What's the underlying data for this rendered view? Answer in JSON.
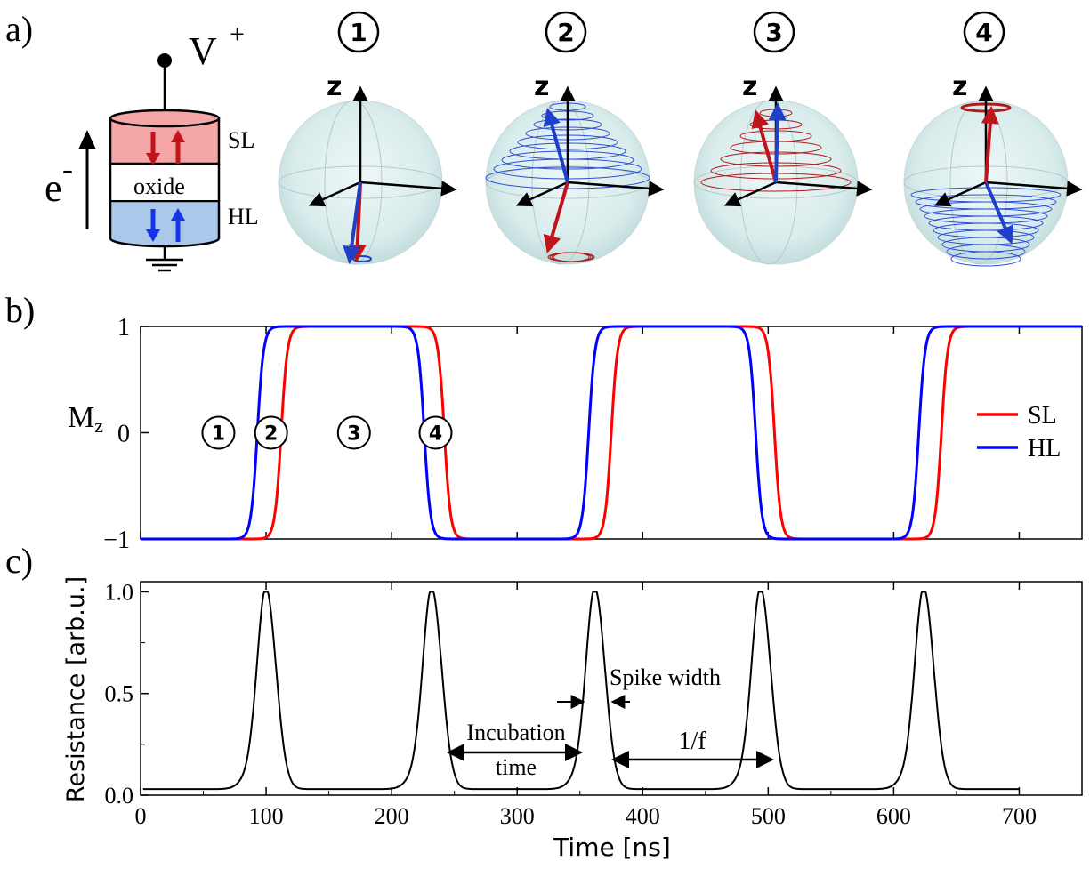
{
  "panel_labels": {
    "a": "a)",
    "b": "b)",
    "c": "c)"
  },
  "device": {
    "voltage_label": "V",
    "voltage_sup": "+",
    "electron_label": "e",
    "electron_sup": "-",
    "layer_top": "SL",
    "layer_mid": "oxide",
    "layer_bottom": "HL",
    "colors": {
      "sl_fill": "#f4a6a6",
      "hl_fill": "#a9c8ea",
      "sl_arrow": "#e8141b",
      "hl_arrow": "#1533e8"
    }
  },
  "spheres": [
    {
      "number": "1",
      "axis_label": "z"
    },
    {
      "number": "2",
      "axis_label": "z"
    },
    {
      "number": "3",
      "axis_label": "z"
    },
    {
      "number": "4",
      "axis_label": "z"
    }
  ],
  "chart_data": [
    {
      "type": "line",
      "ylabel": "M",
      "ylabel_sub": "z",
      "ylim": [
        -1,
        1
      ],
      "xlim": [
        0,
        750
      ],
      "yticks": [
        "1",
        "0",
        "−1"
      ],
      "ytick_values": [
        1,
        0,
        -1
      ],
      "series": [
        {
          "name": "SL",
          "color": "#ff0000",
          "switch_up_ns": [
            112,
            375,
            638
          ],
          "switch_down_ns": [
            242,
            505
          ]
        },
        {
          "name": "HL",
          "color": "#0000ff",
          "switch_up_ns": [
            93,
            357,
            620
          ],
          "switch_down_ns": [
            226,
            490
          ]
        }
      ],
      "state_markers": [
        {
          "label": "1",
          "x_ns": 62
        },
        {
          "label": "2",
          "x_ns": 104
        },
        {
          "label": "3",
          "x_ns": 170
        },
        {
          "label": "4",
          "x_ns": 235
        }
      ],
      "legend_position": "right"
    },
    {
      "type": "line",
      "xlabel": "Time [ns]",
      "ylabel": "Resistance [arb.u.]",
      "xlim": [
        0,
        750
      ],
      "ylim": [
        0,
        1.05
      ],
      "xticks": [
        "0",
        "100",
        "200",
        "300",
        "400",
        "500",
        "600",
        "700"
      ],
      "xtick_values": [
        0,
        100,
        200,
        300,
        400,
        500,
        600,
        700
      ],
      "yticks": [
        "0.0",
        "0.5",
        "1.0"
      ],
      "ytick_values": [
        0,
        0.5,
        1.0
      ],
      "series": [
        {
          "name": "",
          "color": "#000000",
          "baseline": 0.03,
          "peaks_ns": [
            100,
            232,
            362,
            494,
            624
          ],
          "peak_value": 1.0
        }
      ],
      "annotations": {
        "spike_width": "Spike width",
        "incubation_line1": "Incubation",
        "incubation_line2": "time",
        "period": "1/f"
      }
    }
  ]
}
